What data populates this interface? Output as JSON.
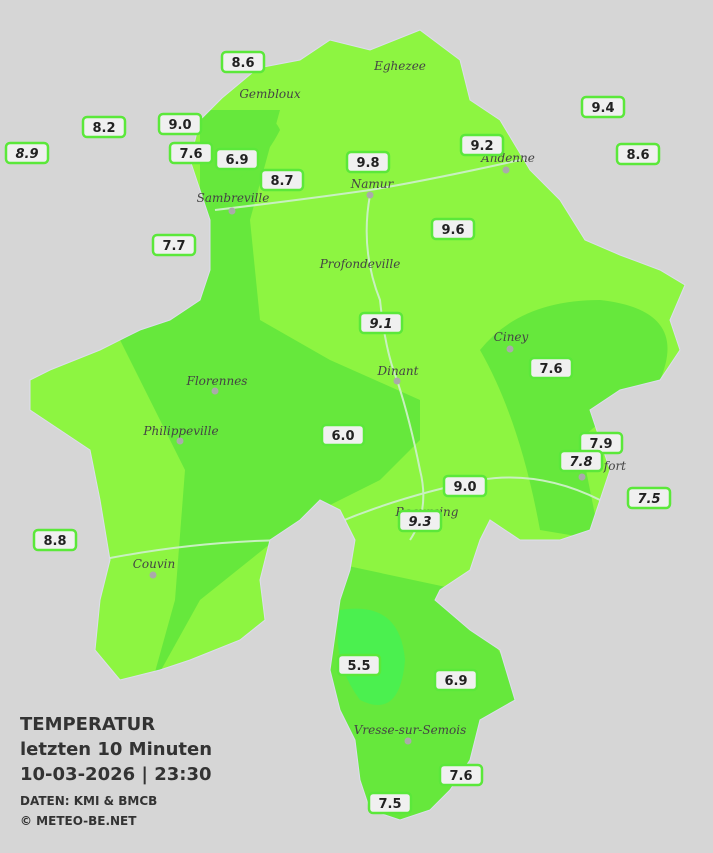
{
  "map": {
    "legend": [
      "TEMPERATUR",
      "letzten 10 Minuten",
      "10-03-2026  |  23:30",
      "DATEN: KMI & BMCB",
      "© METEO-BE.NET"
    ],
    "cities": [
      "Eghezee",
      "Gembloux",
      "Andenne",
      "Namur",
      "Sambreville",
      "Profondeville",
      "Ciney",
      "Dinant",
      "Florennes",
      "Philippeville",
      "Rochefort",
      "Beauraing",
      "Couvin",
      "Vresse-sur-Semois"
    ],
    "stations": [
      {
        "value": "8.6"
      },
      {
        "value": "8.2"
      },
      {
        "value": "9.0"
      },
      {
        "value": "7.6"
      },
      {
        "value": "6.9"
      },
      {
        "value": "8.7"
      },
      {
        "value": "8.9",
        "italic": true
      },
      {
        "value": "9.8"
      },
      {
        "value": "9.2"
      },
      {
        "value": "9.4"
      },
      {
        "value": "8.6"
      },
      {
        "value": "7.7"
      },
      {
        "value": "9.6"
      },
      {
        "value": "9.1",
        "italic": true
      },
      {
        "value": "7.6"
      },
      {
        "value": "6.0"
      },
      {
        "value": "7.9"
      },
      {
        "value": "7.8",
        "italic": true
      },
      {
        "value": "7.5",
        "italic": true
      },
      {
        "value": "9.0"
      },
      {
        "value": "9.3",
        "italic": true
      },
      {
        "value": "8.8"
      },
      {
        "value": "5.5"
      },
      {
        "value": "6.9"
      },
      {
        "value": "7.6"
      },
      {
        "value": "7.5"
      }
    ]
  }
}
